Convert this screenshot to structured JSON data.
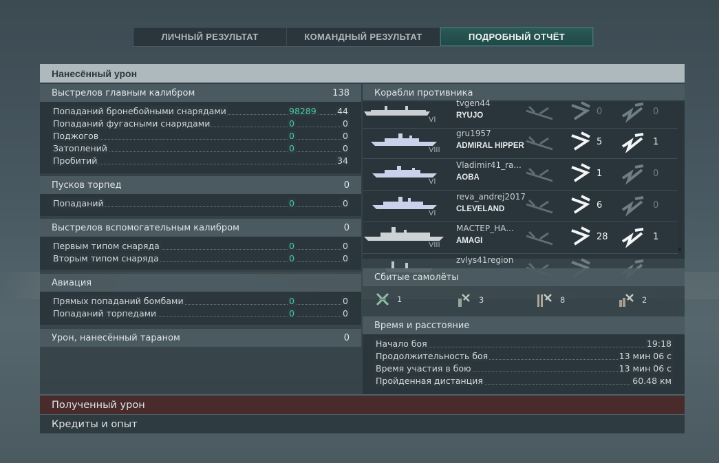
{
  "tabs": [
    {
      "label": "ЛИЧНЫЙ РЕЗУЛЬТАТ",
      "active": false
    },
    {
      "label": "КОМАНДНЫЙ РЕЗУЛЬТАТ",
      "active": false
    },
    {
      "label": "ПОДРОБНЫЙ ОТЧЁТ",
      "active": true
    }
  ],
  "damage_dealt": {
    "title": "Нанесённый урон",
    "main_battery": {
      "label": "Выстрелов главным калибром",
      "value": "138",
      "rows": [
        {
          "label": "Попаданий бронебойными снарядами",
          "damage": "98289",
          "value": "44"
        },
        {
          "label": "Попаданий фугасными снарядами",
          "damage": "0",
          "value": "0"
        },
        {
          "label": "Поджогов",
          "damage": "0",
          "value": "0"
        },
        {
          "label": "Затоплений",
          "damage": "0",
          "value": "0"
        },
        {
          "label": "Пробитий",
          "damage": "",
          "value": "34"
        }
      ]
    },
    "torpedoes": {
      "label": "Пусков торпед",
      "value": "0",
      "rows": [
        {
          "label": "Попаданий",
          "damage": "0",
          "value": "0"
        }
      ]
    },
    "secondary": {
      "label": "Выстрелов вспомогательным калибром",
      "value": "0",
      "rows": [
        {
          "label": "Первым типом снаряда",
          "damage": "0",
          "value": "0"
        },
        {
          "label": "Вторым типом снаряда",
          "damage": "0",
          "value": "0"
        }
      ]
    },
    "aviation": {
      "label": "Авиация",
      "rows": [
        {
          "label": "Прямых попаданий бомбами",
          "damage": "0",
          "value": "0"
        },
        {
          "label": "Попаданий торпедами",
          "damage": "0",
          "value": "0"
        }
      ]
    },
    "ram": {
      "label": "Урон, нанесённый тараном",
      "value": "0"
    }
  },
  "enemy_ships": {
    "title": "Корабли противника",
    "ships": [
      {
        "player": "tvgen44",
        "name": "RYUJO",
        "tier": "VI",
        "spotted": "",
        "hits": "0",
        "kills": "0",
        "hits_active": false,
        "kills_active": false
      },
      {
        "player": "gru1957",
        "name": "ADMIRAL HIPPER",
        "tier": "VIII",
        "spotted": "",
        "hits": "5",
        "kills": "1",
        "hits_active": true,
        "kills_active": true
      },
      {
        "player": "Vladimir41_ra...",
        "name": "AOBA",
        "tier": "VI",
        "spotted": "",
        "hits": "1",
        "kills": "0",
        "hits_active": true,
        "kills_active": false
      },
      {
        "player": "reva_andrej2017",
        "name": "CLEVELAND",
        "tier": "VI",
        "spotted": "",
        "hits": "6",
        "kills": "0",
        "hits_active": true,
        "kills_active": false
      },
      {
        "player": "МАСТЕР_НА...",
        "name": "AMAGI",
        "tier": "VIII",
        "spotted": "",
        "hits": "28",
        "kills": "1",
        "hits_active": true,
        "kills_active": true
      },
      {
        "player": "zvlys41region",
        "name": "",
        "tier": "",
        "spotted": "",
        "hits": "",
        "kills": "",
        "hits_active": false,
        "kills_active": false
      }
    ]
  },
  "planes_shot": {
    "title": "Сбитые самолёты",
    "items": [
      {
        "icon": "fighter-icon",
        "count": "1"
      },
      {
        "icon": "torpedo-bomber-icon",
        "count": "3"
      },
      {
        "icon": "dive-bomber-icon",
        "count": "8"
      },
      {
        "icon": "heavy-bomber-icon",
        "count": "2"
      }
    ]
  },
  "time_distance": {
    "title": "Время и расстояние",
    "rows": [
      {
        "label": "Начало боя",
        "value": "19:18"
      },
      {
        "label": "Продолжительность боя",
        "value": "13 мин 06 с"
      },
      {
        "label": "Время участия в бою",
        "value": "13 мин 06 с"
      },
      {
        "label": "Пройденная дистанция",
        "value": "60.48 км"
      }
    ]
  },
  "damage_received": {
    "title": "Полученный урон",
    "color": "#4a2b2b"
  },
  "credits_xp": {
    "title": "Кредиты и опыт"
  },
  "colors": {
    "accent": "#47c9a4",
    "tab_active": "#225250",
    "header": "#aeb9bd"
  }
}
